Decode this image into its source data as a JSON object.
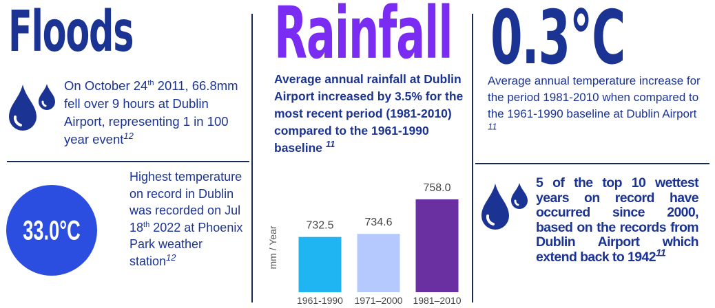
{
  "floods": {
    "title": "Floods",
    "text": [
      "On October 24",
      "th",
      " 2011, 66.8mm fell over 9 hours at Dublin Airport, representing 1 in 100 year event",
      "12"
    ]
  },
  "record": {
    "value": "33.0°C",
    "text": [
      "Highest temperature on record in Dublin was recorded on Jul 18",
      "th",
      " 2022 at Phoenix Park weather station",
      "12"
    ]
  },
  "rainfall": {
    "title": "Rainfall",
    "text": [
      "Average annual rainfall at Dublin Airport increased by 3.5% for the most recent period (1981-2010) compared to the 1961-1990 baseline",
      "11"
    ]
  },
  "chart_data": {
    "type": "bar",
    "y_label": "mm / Year",
    "categories": [
      "1961-1990",
      "1971–2000",
      "1981–2010"
    ],
    "values": [
      732.5,
      734.6,
      758.0
    ],
    "value_labels": [
      "732.5",
      "734.6",
      "758.0"
    ],
    "colors": [
      "#1fb4f2",
      "#b5c9ff",
      "#6a30a2"
    ],
    "ylim": [
      695,
      765
    ]
  },
  "temperature": {
    "title": "0.3°C",
    "text": [
      "Average annual temperature increase for the period 1981-2010 when compared to the 1961-1990 baseline at Dublin Airport",
      "11"
    ]
  },
  "wettest": {
    "text": [
      "5 of the top 10 wettest years on record have occurred since 2000, based on the records from Dublin Airport which extend back to 1942",
      "11"
    ]
  }
}
